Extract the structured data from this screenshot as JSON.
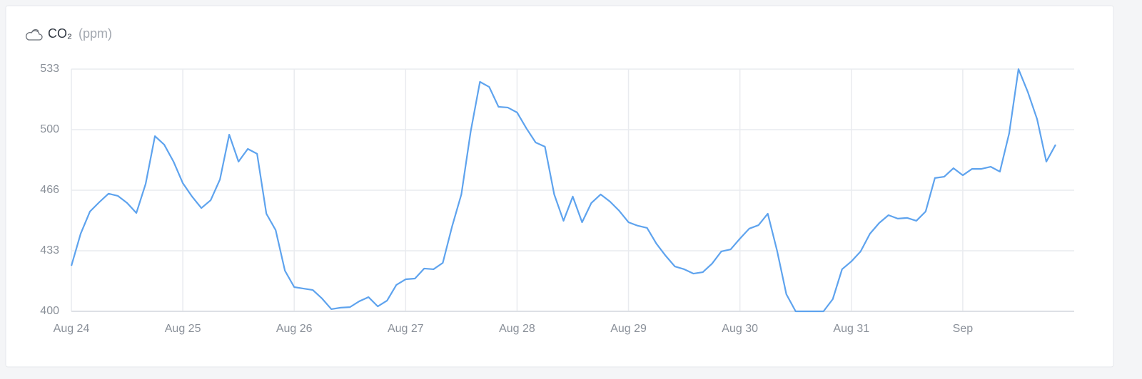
{
  "chart_data": {
    "type": "line",
    "title": "CO₂",
    "unit": "(ppm)",
    "values": [
      425,
      442.6,
      454.8,
      459.9,
      464.6,
      463.4,
      459.5,
      454,
      470,
      496.2,
      491.5,
      482.2,
      470.4,
      463,
      456.7,
      461,
      472.4,
      497,
      482.2,
      489.2,
      486.5,
      453.6,
      444.6,
      422.3,
      413.3,
      412.5,
      411.7,
      407,
      401.2,
      402,
      402.3,
      405.5,
      407.8,
      402.7,
      405.9,
      414.5,
      417.6,
      418,
      423.5,
      423.1,
      426.6,
      446.6,
      464.2,
      498.6,
      526,
      523.2,
      512.3,
      511.9,
      509.2,
      500.5,
      492.7,
      490.4,
      464.2,
      449.7,
      463,
      448.9,
      459.5,
      464.2,
      460.3,
      455.2,
      448.9,
      447,
      445.8,
      437.2,
      430.5,
      424.6,
      423.1,
      420.7,
      421.5,
      426.2,
      432.9,
      434,
      439.9,
      445.4,
      447.3,
      453.6,
      433.3,
      409.4,
      400,
      400,
      400,
      400,
      406.7,
      423.1,
      427.4,
      432.9,
      442.6,
      448.5,
      452.8,
      450.9,
      451.3,
      449.7,
      454.8,
      473.2,
      473.9,
      478.6,
      474.7,
      478.2,
      478.2,
      479.4,
      476.7,
      497.8,
      533,
      520.5,
      505.6,
      482.2,
      491.5
    ],
    "color": "#5ea3ee",
    "xlim": [
      0,
      108
    ],
    "xticks": [
      {
        "value": 0,
        "label": "Aug 24"
      },
      {
        "value": 12,
        "label": "Aug 25"
      },
      {
        "value": 24,
        "label": "Aug 26"
      },
      {
        "value": 36,
        "label": "Aug 27"
      },
      {
        "value": 48,
        "label": "Aug 28"
      },
      {
        "value": 60,
        "label": "Aug 29"
      },
      {
        "value": 72,
        "label": "Aug 30"
      },
      {
        "value": 84,
        "label": "Aug 31"
      },
      {
        "value": 96,
        "label": "Sep"
      }
    ],
    "ylim": [
      400,
      533
    ],
    "yticks": [
      400,
      {
        "value": 433.25,
        "label": "433"
      },
      {
        "value": 466.5,
        "label": "466"
      },
      {
        "value": 499.75,
        "label": "500"
      },
      533
    ],
    "grid": true
  }
}
